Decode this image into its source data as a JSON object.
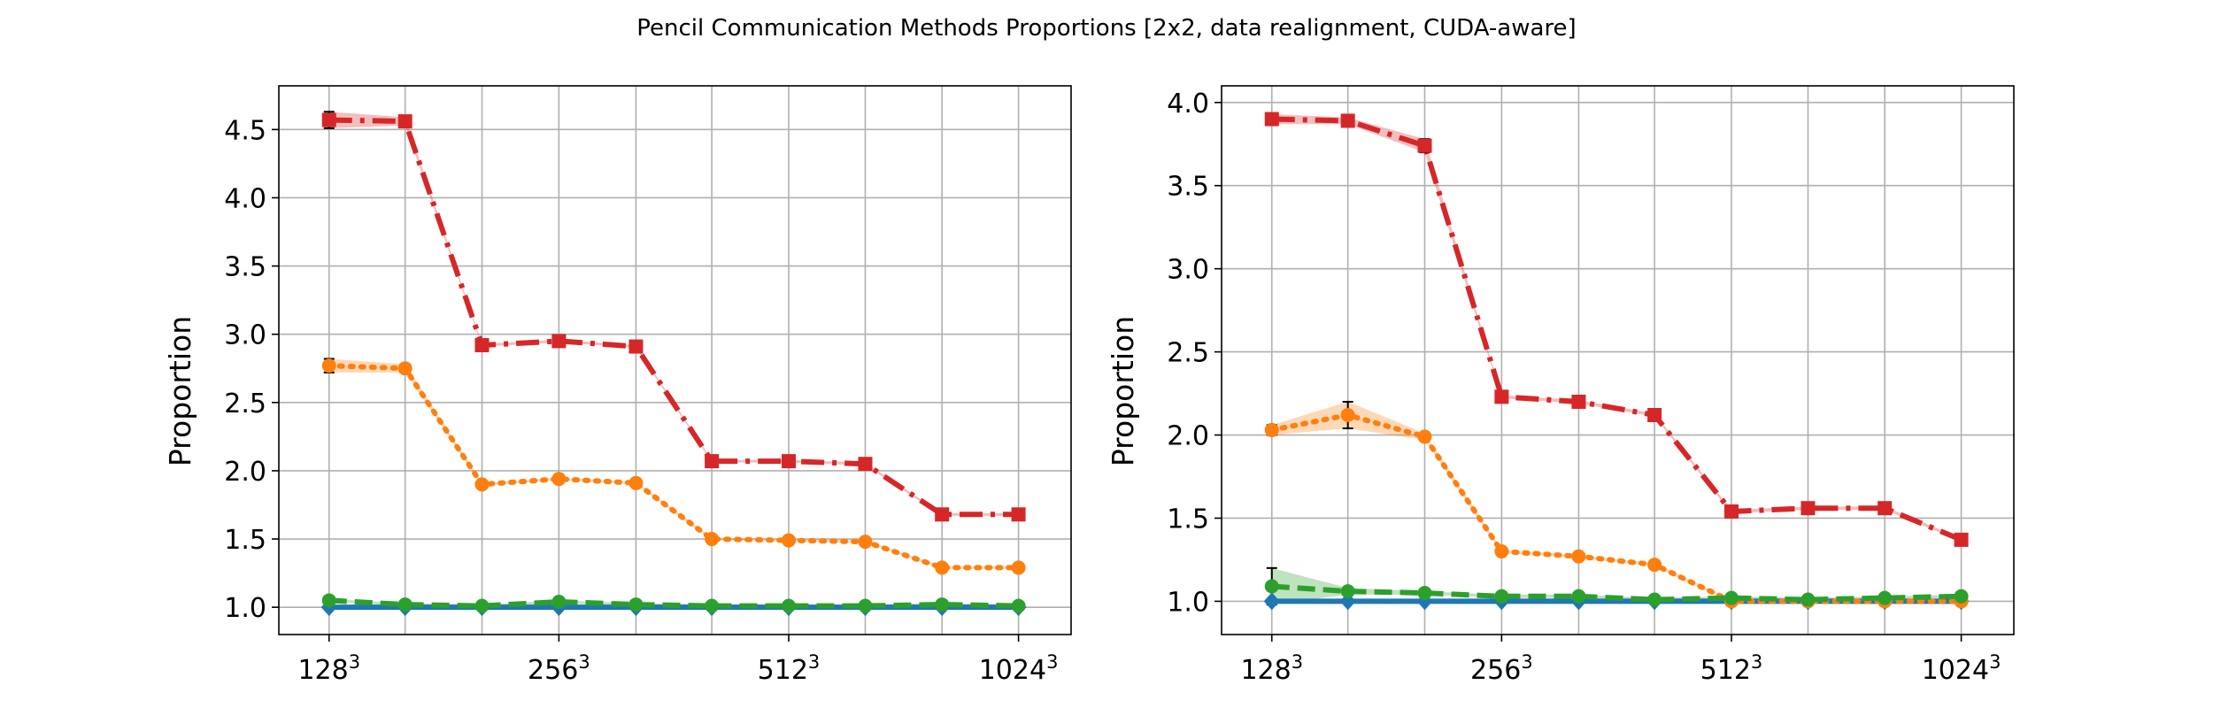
{
  "figure": {
    "title": "Pencil Communication Methods Proportions [2x2, data realignment, CUDA-aware]"
  },
  "colors": {
    "blue": "#1f77b4",
    "orange": "#ff7f0e",
    "green": "#2ca02c",
    "red": "#d62728",
    "grid": "#b0b0b0"
  },
  "chart_data": [
    {
      "type": "line",
      "title": "",
      "xlabel": "",
      "ylabel": "Proportion",
      "ylim": [
        0.8,
        4.82
      ],
      "yticks": [
        1.0,
        1.5,
        2.0,
        2.5,
        3.0,
        3.5,
        4.0,
        4.5
      ],
      "ytick_labels": [
        "1.0",
        "1.5",
        "2.0",
        "2.5",
        "3.0",
        "3.5",
        "4.0",
        "4.5"
      ],
      "x": [
        128,
        161,
        203,
        256,
        323,
        406,
        512,
        645,
        813,
        1024
      ],
      "xlim": [
        110,
        1200
      ],
      "xscale": "log",
      "xticks": [
        128,
        256,
        512,
        1024
      ],
      "xtick_labels": [
        "128",
        "256",
        "512",
        "1024"
      ],
      "xtick_exponent": "3",
      "grid": true,
      "series": [
        {
          "color": "blue",
          "marker": "diamond",
          "linestyle": "solid",
          "values": [
            1.0,
            1.0,
            1.0,
            1.0,
            1.0,
            1.0,
            1.0,
            1.0,
            1.0,
            1.0
          ]
        },
        {
          "color": "orange",
          "marker": "circle",
          "linestyle": "dotted",
          "values": [
            2.77,
            2.75,
            1.9,
            1.94,
            1.91,
            1.5,
            1.49,
            1.48,
            1.29,
            1.29
          ],
          "errors": [
            0.05,
            0.03,
            0.01,
            0.01,
            0.01,
            0.01,
            0.01,
            0.01,
            0.01,
            0.01
          ]
        },
        {
          "color": "green",
          "marker": "circle",
          "linestyle": "dashed",
          "values": [
            1.05,
            1.02,
            1.01,
            1.04,
            1.02,
            1.01,
            1.01,
            1.01,
            1.02,
            1.01
          ],
          "errors": [
            0.01,
            0.01,
            0.01,
            0.01,
            0.01,
            0.01,
            0.01,
            0.01,
            0.01,
            0.01
          ]
        },
        {
          "color": "red",
          "marker": "square",
          "linestyle": "dashdot",
          "values": [
            4.57,
            4.56,
            2.92,
            2.95,
            2.91,
            2.07,
            2.07,
            2.05,
            1.68,
            1.68
          ],
          "errors": [
            0.06,
            0.03,
            0.01,
            0.01,
            0.01,
            0.01,
            0.01,
            0.01,
            0.01,
            0.01
          ]
        }
      ]
    },
    {
      "type": "line",
      "title": "",
      "xlabel": "",
      "ylabel": "Proportion",
      "ylim": [
        0.8,
        4.1
      ],
      "yticks": [
        1.0,
        1.5,
        2.0,
        2.5,
        3.0,
        3.5,
        4.0
      ],
      "ytick_labels": [
        "1.0",
        "1.5",
        "2.0",
        "2.5",
        "3.0",
        "3.5",
        "4.0"
      ],
      "x": [
        128,
        161,
        203,
        256,
        323,
        406,
        512,
        645,
        813,
        1024
      ],
      "xlim": [
        110,
        1200
      ],
      "xscale": "log",
      "xticks": [
        128,
        256,
        512,
        1024
      ],
      "xtick_labels": [
        "128",
        "256",
        "512",
        "1024"
      ],
      "xtick_exponent": "3",
      "grid": true,
      "series": [
        {
          "color": "blue",
          "marker": "diamond",
          "linestyle": "solid",
          "values": [
            1.0,
            1.0,
            1.0,
            1.0,
            1.0,
            1.0,
            1.0,
            1.0,
            1.0,
            1.0
          ]
        },
        {
          "color": "orange",
          "marker": "circle",
          "linestyle": "dotted",
          "values": [
            2.03,
            2.12,
            1.99,
            1.3,
            1.27,
            1.22,
            1.0,
            1.0,
            1.0,
            1.0
          ],
          "errors": [
            0.03,
            0.08,
            0.02,
            0.01,
            0.01,
            0.01,
            0.01,
            0.01,
            0.01,
            0.01
          ]
        },
        {
          "color": "green",
          "marker": "circle",
          "linestyle": "dashed",
          "values": [
            1.09,
            1.06,
            1.05,
            1.03,
            1.03,
            1.01,
            1.02,
            1.01,
            1.02,
            1.03
          ],
          "errors": [
            0.11,
            0.02,
            0.01,
            0.01,
            0.01,
            0.01,
            0.01,
            0.01,
            0.01,
            0.01
          ]
        },
        {
          "color": "red",
          "marker": "square",
          "linestyle": "dashdot",
          "values": [
            3.9,
            3.89,
            3.74,
            2.23,
            2.2,
            2.12,
            1.54,
            1.56,
            1.56,
            1.37
          ],
          "errors": [
            0.03,
            0.02,
            0.04,
            0.01,
            0.01,
            0.01,
            0.01,
            0.01,
            0.01,
            0.01
          ]
        }
      ]
    }
  ]
}
